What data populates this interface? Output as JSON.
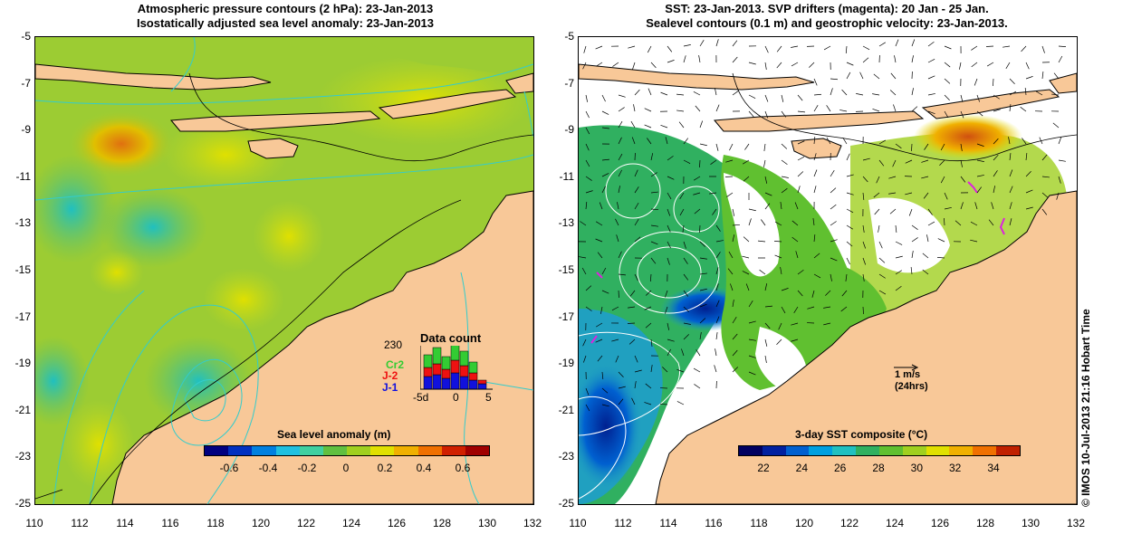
{
  "left_panel": {
    "title_line1": "Atmospheric pressure contours (2 hPa): 23-Jan-2013",
    "title_line2": "Isostatically adjusted sea level anomaly: 23-Jan-2013",
    "colorbar": {
      "title": "Sea level anomaly (m)",
      "ticks": [
        "-0.6",
        "-0.4",
        "-0.2",
        "0",
        "0.2",
        "0.4",
        "0.6"
      ],
      "colors": [
        "#000080",
        "#0030c0",
        "#0080e0",
        "#20c0e0",
        "#40d0a0",
        "#60c040",
        "#a0d020",
        "#e0e000",
        "#f0b000",
        "#f07000",
        "#d02000",
        "#a00000"
      ]
    },
    "data_count": {
      "title": "Data count",
      "max_label": "230",
      "legend": [
        {
          "label": "Cr2",
          "color": "#33cc33"
        },
        {
          "label": "J-2",
          "color": "#ee1111"
        },
        {
          "label": "J-1",
          "color": "#1111dd"
        }
      ],
      "x_labels": [
        "-5d",
        "0",
        "5"
      ]
    }
  },
  "right_panel": {
    "title_line1": "SST: 23-Jan-2013. SVP drifters (magenta): 20 Jan - 25 Jan.",
    "title_line2": "Sealevel contours (0.1 m) and geostrophic velocity: 23-Jan-2013.",
    "colorbar": {
      "title": "3-day SST composite (°C)",
      "ticks": [
        "22",
        "24",
        "26",
        "28",
        "30",
        "32",
        "34"
      ],
      "colors": [
        "#000060",
        "#0020a0",
        "#0060d0",
        "#00a0e0",
        "#20c0c0",
        "#30b060",
        "#60c030",
        "#a0d020",
        "#e0e000",
        "#f0b000",
        "#f07000",
        "#c02000"
      ]
    },
    "velocity_scale": {
      "line1": "1 m/s",
      "line2": "(24hrs)"
    }
  },
  "axes": {
    "lat_ticks": [
      "-5",
      "-7",
      "-9",
      "-11",
      "-13",
      "-15",
      "-17",
      "-19",
      "-21",
      "-23",
      "-25"
    ],
    "lon_ticks": [
      "110",
      "112",
      "114",
      "116",
      "118",
      "120",
      "122",
      "124",
      "126",
      "128",
      "130",
      "132"
    ]
  },
  "credit": "© IMOS 10-Jul-2013 21:16 Hobart Time",
  "colors": {
    "land": "#f8c898",
    "ocean_sla": "#9ccc33",
    "coast": "#000000",
    "pressure_contour": "#33cccc"
  }
}
